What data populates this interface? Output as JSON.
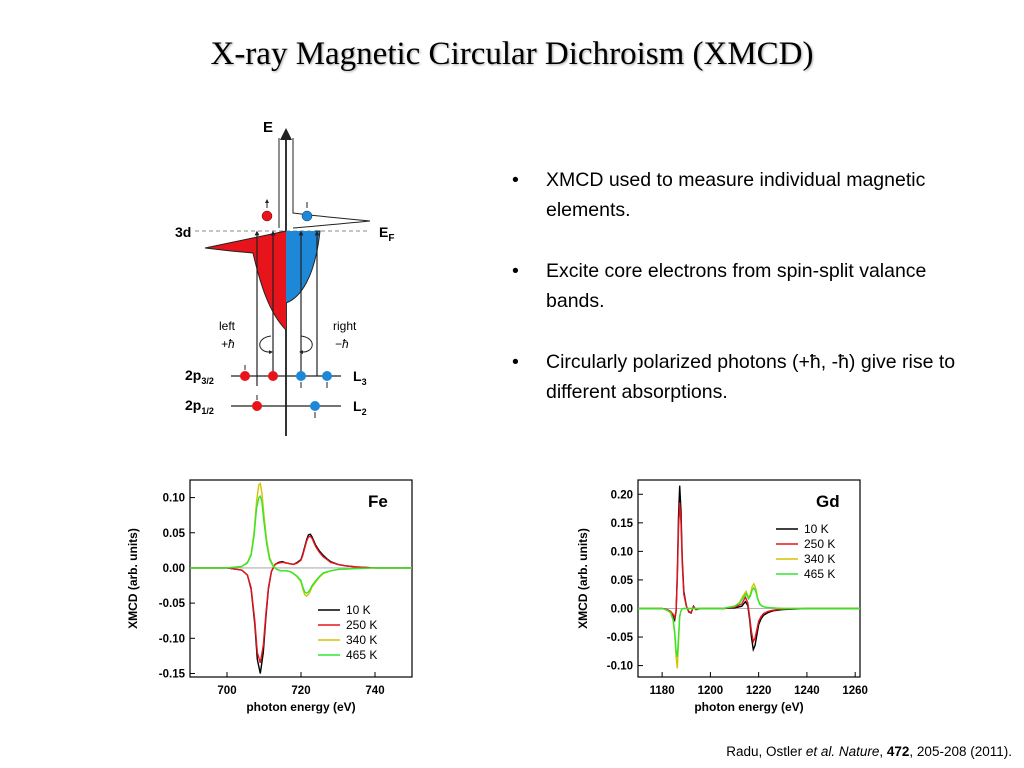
{
  "slide": {
    "title": "X-ray Magnetic Circular Dichroism (XMCD)",
    "bullets": [
      "XMCD used to measure individual magnetic elements.",
      "Excite core electrons from spin-split valance bands.",
      "Circularly polarized photons (+ħ, -ħ) give rise to different absorptions."
    ],
    "bullet_symbol": "•",
    "citation": {
      "authors": "Radu, Ostler ",
      "etal": "et al.",
      "journal": " Nature",
      "sep1": ", ",
      "volume": "472",
      "rest": ", 205-208 (2011)."
    }
  },
  "diagram": {
    "energy_label": "E",
    "level_3d": "3d",
    "fermi_label": "E",
    "fermi_sub": "F",
    "left_label": "left",
    "left_helicity": "+ħ",
    "right_label": "right",
    "right_helicity": "−ħ",
    "p32_label": "2p",
    "p32_sub": "3/2",
    "p12_label": "2p",
    "p12_sub": "1/2",
    "l3_label": "L",
    "l3_sub": "3",
    "l2_label": "L",
    "l2_sub": "2",
    "colors": {
      "spin_up": "#e8141c",
      "spin_down": "#1e88d8"
    }
  },
  "chart_data": [
    {
      "type": "line",
      "title": "Fe",
      "xlabel": "photon energy (eV)",
      "ylabel": "XMCD (arb. units)",
      "xlim": [
        690,
        750
      ],
      "ylim": [
        -0.155,
        0.125
      ],
      "xticks": [
        700,
        720,
        740
      ],
      "yticks": [
        0.1,
        0.05,
        0.0,
        -0.05,
        -0.1,
        -0.15
      ],
      "ytick_labels": [
        "0.10",
        "0.05",
        "0.00",
        "-0.05",
        "-0.10",
        "-0.15"
      ],
      "legend_position": "bottom-right",
      "series": [
        {
          "name": "10 K",
          "color": "#000000",
          "x": [
            690,
            700,
            704,
            705.5,
            706.5,
            707.5,
            708.2,
            709,
            709.8,
            710.5,
            711.2,
            712,
            713,
            714,
            715,
            716,
            717,
            718,
            719,
            720,
            720.5,
            721,
            721.5,
            722,
            722.5,
            723,
            723.5,
            724,
            725,
            726,
            727,
            728,
            730,
            732,
            735,
            740,
            750
          ],
          "y": [
            0,
            0,
            -0.003,
            -0.01,
            -0.03,
            -0.08,
            -0.13,
            -0.15,
            -0.12,
            -0.07,
            -0.03,
            -0.005,
            0.005,
            0.008,
            0.009,
            0.007,
            0.006,
            0.005,
            0.008,
            0.012,
            0.02,
            0.03,
            0.04,
            0.047,
            0.048,
            0.044,
            0.038,
            0.032,
            0.024,
            0.018,
            0.013,
            0.009,
            0.005,
            0.003,
            0.0015,
            0,
            0
          ]
        },
        {
          "name": "250 K",
          "color": "#e8141c",
          "x": [
            690,
            700,
            704,
            705.5,
            706.5,
            707.5,
            708.2,
            709,
            709.8,
            710.5,
            711.2,
            712,
            713,
            714,
            715,
            716,
            717,
            718,
            719,
            720,
            720.5,
            721,
            721.5,
            722,
            722.5,
            723,
            723.5,
            724,
            725,
            726,
            727,
            728,
            730,
            732,
            735,
            740,
            750
          ],
          "y": [
            0,
            0,
            -0.003,
            -0.01,
            -0.028,
            -0.075,
            -0.12,
            -0.135,
            -0.11,
            -0.065,
            -0.028,
            -0.005,
            0.005,
            0.007,
            0.008,
            0.007,
            0.006,
            0.005,
            0.007,
            0.011,
            0.018,
            0.028,
            0.038,
            0.044,
            0.045,
            0.042,
            0.036,
            0.03,
            0.022,
            0.016,
            0.012,
            0.008,
            0.005,
            0.003,
            0.0015,
            0,
            0
          ]
        },
        {
          "name": "340 K",
          "color": "#d4c400",
          "x": [
            690,
            700,
            704,
            705.5,
            706.5,
            707.3,
            708,
            708.6,
            709,
            709.4,
            710,
            710.7,
            711.5,
            712.5,
            713.5,
            714.5,
            716,
            717,
            718,
            719,
            720,
            720.5,
            721,
            721.5,
            722,
            722.5,
            723,
            724,
            725,
            726,
            728,
            730,
            735,
            740,
            750
          ],
          "y": [
            0,
            0,
            0.002,
            0.008,
            0.02,
            0.05,
            0.095,
            0.118,
            0.12,
            0.108,
            0.075,
            0.04,
            0.015,
            0.003,
            -0.002,
            -0.004,
            -0.004,
            -0.005,
            -0.008,
            -0.013,
            -0.02,
            -0.03,
            -0.038,
            -0.04,
            -0.038,
            -0.033,
            -0.027,
            -0.02,
            -0.013,
            -0.008,
            -0.004,
            -0.002,
            -0.001,
            0,
            0
          ]
        },
        {
          "name": "465 K",
          "color": "#2ee82e",
          "x": [
            690,
            700,
            704,
            705.5,
            706.5,
            707.3,
            708,
            708.6,
            709,
            709.4,
            710,
            710.7,
            711.5,
            712.5,
            713.5,
            714.5,
            716,
            717,
            718,
            719,
            720,
            720.5,
            721,
            721.5,
            722,
            722.5,
            723,
            724,
            725,
            726,
            728,
            730,
            735,
            740,
            750
          ],
          "y": [
            0,
            0,
            0.002,
            0.007,
            0.018,
            0.045,
            0.085,
            0.1,
            0.102,
            0.095,
            0.065,
            0.035,
            0.012,
            0.002,
            -0.002,
            -0.004,
            -0.004,
            -0.005,
            -0.008,
            -0.012,
            -0.018,
            -0.027,
            -0.034,
            -0.036,
            -0.034,
            -0.03,
            -0.025,
            -0.018,
            -0.012,
            -0.007,
            -0.004,
            -0.002,
            -0.001,
            0,
            0
          ]
        }
      ]
    },
    {
      "type": "line",
      "title": "Gd",
      "xlabel": "photon energy (eV)",
      "ylabel": "XMCD (arb. units)",
      "xlim": [
        1170,
        1262
      ],
      "ylim": [
        -0.12,
        0.225
      ],
      "xticks": [
        1180,
        1200,
        1220,
        1240,
        1260
      ],
      "yticks": [
        0.2,
        0.15,
        0.1,
        0.05,
        0.0,
        -0.05,
        -0.1
      ],
      "ytick_labels": [
        "0.20",
        "0.15",
        "0.10",
        "0.05",
        "0.00",
        "-0.05",
        "-0.10"
      ],
      "legend_position": "top-right",
      "series": [
        {
          "name": "10 K",
          "color": "#000000",
          "x": [
            1170,
            1180,
            1182,
            1183.5,
            1184.5,
            1185.2,
            1185.8,
            1186.3,
            1186.8,
            1187.3,
            1187.8,
            1188.3,
            1189,
            1190,
            1191,
            1192,
            1193,
            1194,
            1196,
            1200,
            1205,
            1210,
            1213,
            1214.5,
            1215.5,
            1216.3,
            1217,
            1217.8,
            1218.5,
            1219.3,
            1220,
            1221,
            1222,
            1224,
            1226,
            1230,
            1240,
            1262
          ],
          "y": [
            0,
            0,
            -0.002,
            -0.006,
            -0.012,
            -0.02,
            -0.005,
            0.06,
            0.16,
            0.215,
            0.17,
            0.09,
            0.03,
            0.005,
            -0.006,
            -0.008,
            0.004,
            -0.002,
            0,
            0,
            0,
            0.001,
            0.004,
            0.012,
            0.005,
            -0.02,
            -0.05,
            -0.072,
            -0.065,
            -0.045,
            -0.028,
            -0.018,
            -0.012,
            -0.007,
            -0.004,
            -0.002,
            0,
            0
          ]
        },
        {
          "name": "250 K",
          "color": "#e8141c",
          "x": [
            1170,
            1180,
            1182,
            1183.5,
            1184.5,
            1185.2,
            1185.8,
            1186.3,
            1186.8,
            1187.3,
            1187.8,
            1188.3,
            1189,
            1190,
            1191,
            1192,
            1193,
            1194,
            1196,
            1200,
            1205,
            1210,
            1213,
            1214.5,
            1215.5,
            1216.3,
            1217,
            1217.8,
            1218.5,
            1219.3,
            1220,
            1221,
            1222,
            1224,
            1226,
            1230,
            1240,
            1262
          ],
          "y": [
            0,
            0,
            -0.002,
            -0.005,
            -0.01,
            -0.016,
            -0.004,
            0.05,
            0.14,
            0.185,
            0.15,
            0.08,
            0.025,
            0.004,
            -0.005,
            -0.007,
            0.003,
            -0.002,
            0,
            0,
            0,
            0.002,
            0.008,
            0.02,
            0.01,
            -0.015,
            -0.04,
            -0.058,
            -0.052,
            -0.036,
            -0.022,
            -0.014,
            -0.009,
            -0.005,
            -0.003,
            -0.001,
            0,
            0
          ]
        },
        {
          "name": "340 K",
          "color": "#d4c400",
          "x": [
            1170,
            1180,
            1182,
            1183.5,
            1184.5,
            1185.2,
            1185.8,
            1186.3,
            1186.8,
            1187.3,
            1187.8,
            1188.3,
            1189,
            1190,
            1192,
            1196,
            1200,
            1205,
            1210,
            1212,
            1213.5,
            1214.8,
            1215.8,
            1216.6,
            1217.3,
            1218,
            1218.8,
            1219.6,
            1220.5,
            1221.5,
            1223,
            1226,
            1230,
            1240,
            1262
          ],
          "y": [
            0,
            0,
            -0.003,
            -0.008,
            -0.02,
            -0.045,
            -0.085,
            -0.105,
            -0.06,
            -0.015,
            -0.004,
            -0.001,
            0,
            0,
            0,
            0,
            0,
            0,
            0.004,
            0.01,
            0.022,
            0.03,
            0.02,
            0.025,
            0.038,
            0.043,
            0.035,
            0.018,
            0.008,
            0.004,
            0.002,
            0.001,
            0,
            0,
            0
          ]
        },
        {
          "name": "465 K",
          "color": "#2ee82e",
          "x": [
            1170,
            1180,
            1182,
            1183.5,
            1184.5,
            1185.2,
            1185.8,
            1186.3,
            1186.8,
            1187.3,
            1187.8,
            1188.3,
            1189,
            1190,
            1192,
            1196,
            1200,
            1205,
            1210,
            1212,
            1213.5,
            1214.8,
            1215.8,
            1216.6,
            1217.3,
            1218,
            1218.8,
            1219.6,
            1220.5,
            1221.5,
            1223,
            1226,
            1230,
            1240,
            1262
          ],
          "y": [
            0,
            0,
            -0.003,
            -0.007,
            -0.018,
            -0.04,
            -0.075,
            -0.085,
            -0.05,
            -0.013,
            -0.004,
            -0.001,
            0,
            0,
            0,
            0,
            0,
            0,
            0.004,
            0.009,
            0.018,
            0.026,
            0.017,
            0.022,
            0.032,
            0.036,
            0.03,
            0.016,
            0.007,
            0.004,
            0.002,
            0.001,
            0,
            0,
            0
          ]
        }
      ]
    }
  ]
}
